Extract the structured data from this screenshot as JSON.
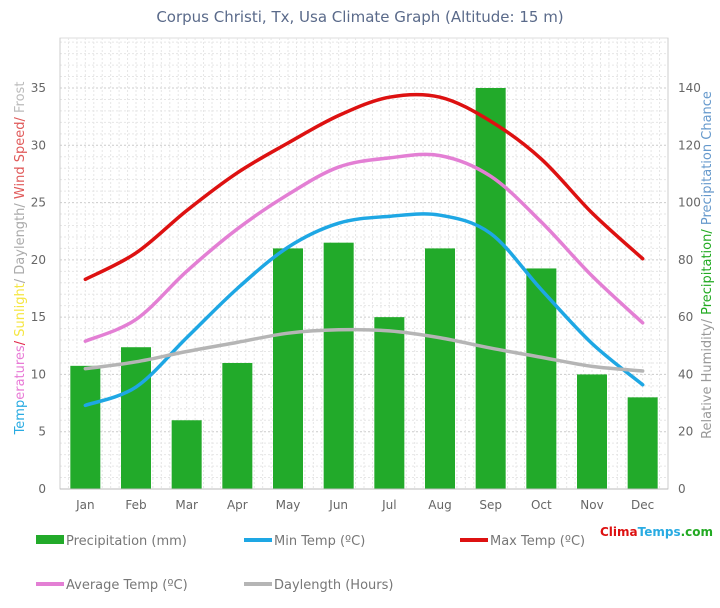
{
  "chart_data": {
    "type": "bar+line",
    "title": "Corpus Christi, Tx, Usa Climate Graph (Altitude: 15 m)",
    "categories": [
      "Jan",
      "Feb",
      "Mar",
      "Apr",
      "May",
      "Jun",
      "Jul",
      "Aug",
      "Sep",
      "Oct",
      "Nov",
      "Dec"
    ],
    "left_axis": {
      "ylim": [
        0,
        35
      ],
      "ticks": [
        0,
        5,
        10,
        15,
        20,
        25,
        30,
        35
      ],
      "label_parts": [
        {
          "text": "Temp",
          "color": "#29abe2"
        },
        {
          "text": "eratures",
          "color": "#e87ad6"
        },
        {
          "text": "/ ",
          "color": "#e0284a"
        },
        {
          "text": "Sunlight",
          "color": "#f5e642"
        },
        {
          "text": "/ Daylength/ ",
          "color": "#aaaaaa"
        },
        {
          "text": "Wind Speed/ ",
          "color": "#e05a5a"
        },
        {
          "text": "Frost",
          "color": "#bbbbbb"
        }
      ]
    },
    "right_axis": {
      "ylim": [
        0,
        140
      ],
      "ticks": [
        0,
        20,
        40,
        60,
        80,
        100,
        120,
        140
      ],
      "label_parts": [
        {
          "text": "Relative Humidity/ ",
          "color": "#999999"
        },
        {
          "text": "Precipitation/ ",
          "color": "#22aa22"
        },
        {
          "text": "Precipitation Chance",
          "color": "#6699cc"
        }
      ]
    },
    "series": [
      {
        "name": "Precipitation (mm)",
        "type": "bar",
        "axis": "right",
        "color": "#22aa2a",
        "values": [
          43,
          49.5,
          24,
          44,
          84,
          86,
          60,
          84,
          140,
          77,
          40,
          32
        ]
      },
      {
        "name": "Min Temp (ºC)",
        "type": "line",
        "axis": "left",
        "color": "#1ea7e4",
        "values": [
          7.3,
          8.9,
          13.2,
          17.5,
          21.1,
          23.2,
          23.8,
          23.9,
          22.3,
          17.4,
          12.7,
          9.1
        ]
      },
      {
        "name": "Max Temp (ºC)",
        "type": "line",
        "axis": "left",
        "color": "#dd1111",
        "values": [
          18.3,
          20.6,
          24.3,
          27.6,
          30.2,
          32.6,
          34.2,
          34.2,
          32.1,
          28.8,
          24.1,
          20.1
        ]
      },
      {
        "name": "Average Temp (ºC)",
        "type": "line",
        "axis": "left",
        "color": "#e37fd4",
        "values": [
          12.9,
          14.8,
          19,
          22.7,
          25.7,
          28.1,
          28.9,
          29.1,
          27.3,
          23.3,
          18.6,
          14.5
        ]
      },
      {
        "name": "Daylength (Hours)",
        "type": "line",
        "axis": "left",
        "color": "#b5b5b5",
        "values": [
          10.5,
          11.1,
          12,
          12.8,
          13.6,
          13.9,
          13.8,
          13.2,
          12.3,
          11.5,
          10.7,
          10.3
        ]
      }
    ],
    "grid": true,
    "legend": "bottom"
  },
  "watermark": {
    "part1": "Clima",
    "part2": "Temps",
    ".com": ".com"
  }
}
